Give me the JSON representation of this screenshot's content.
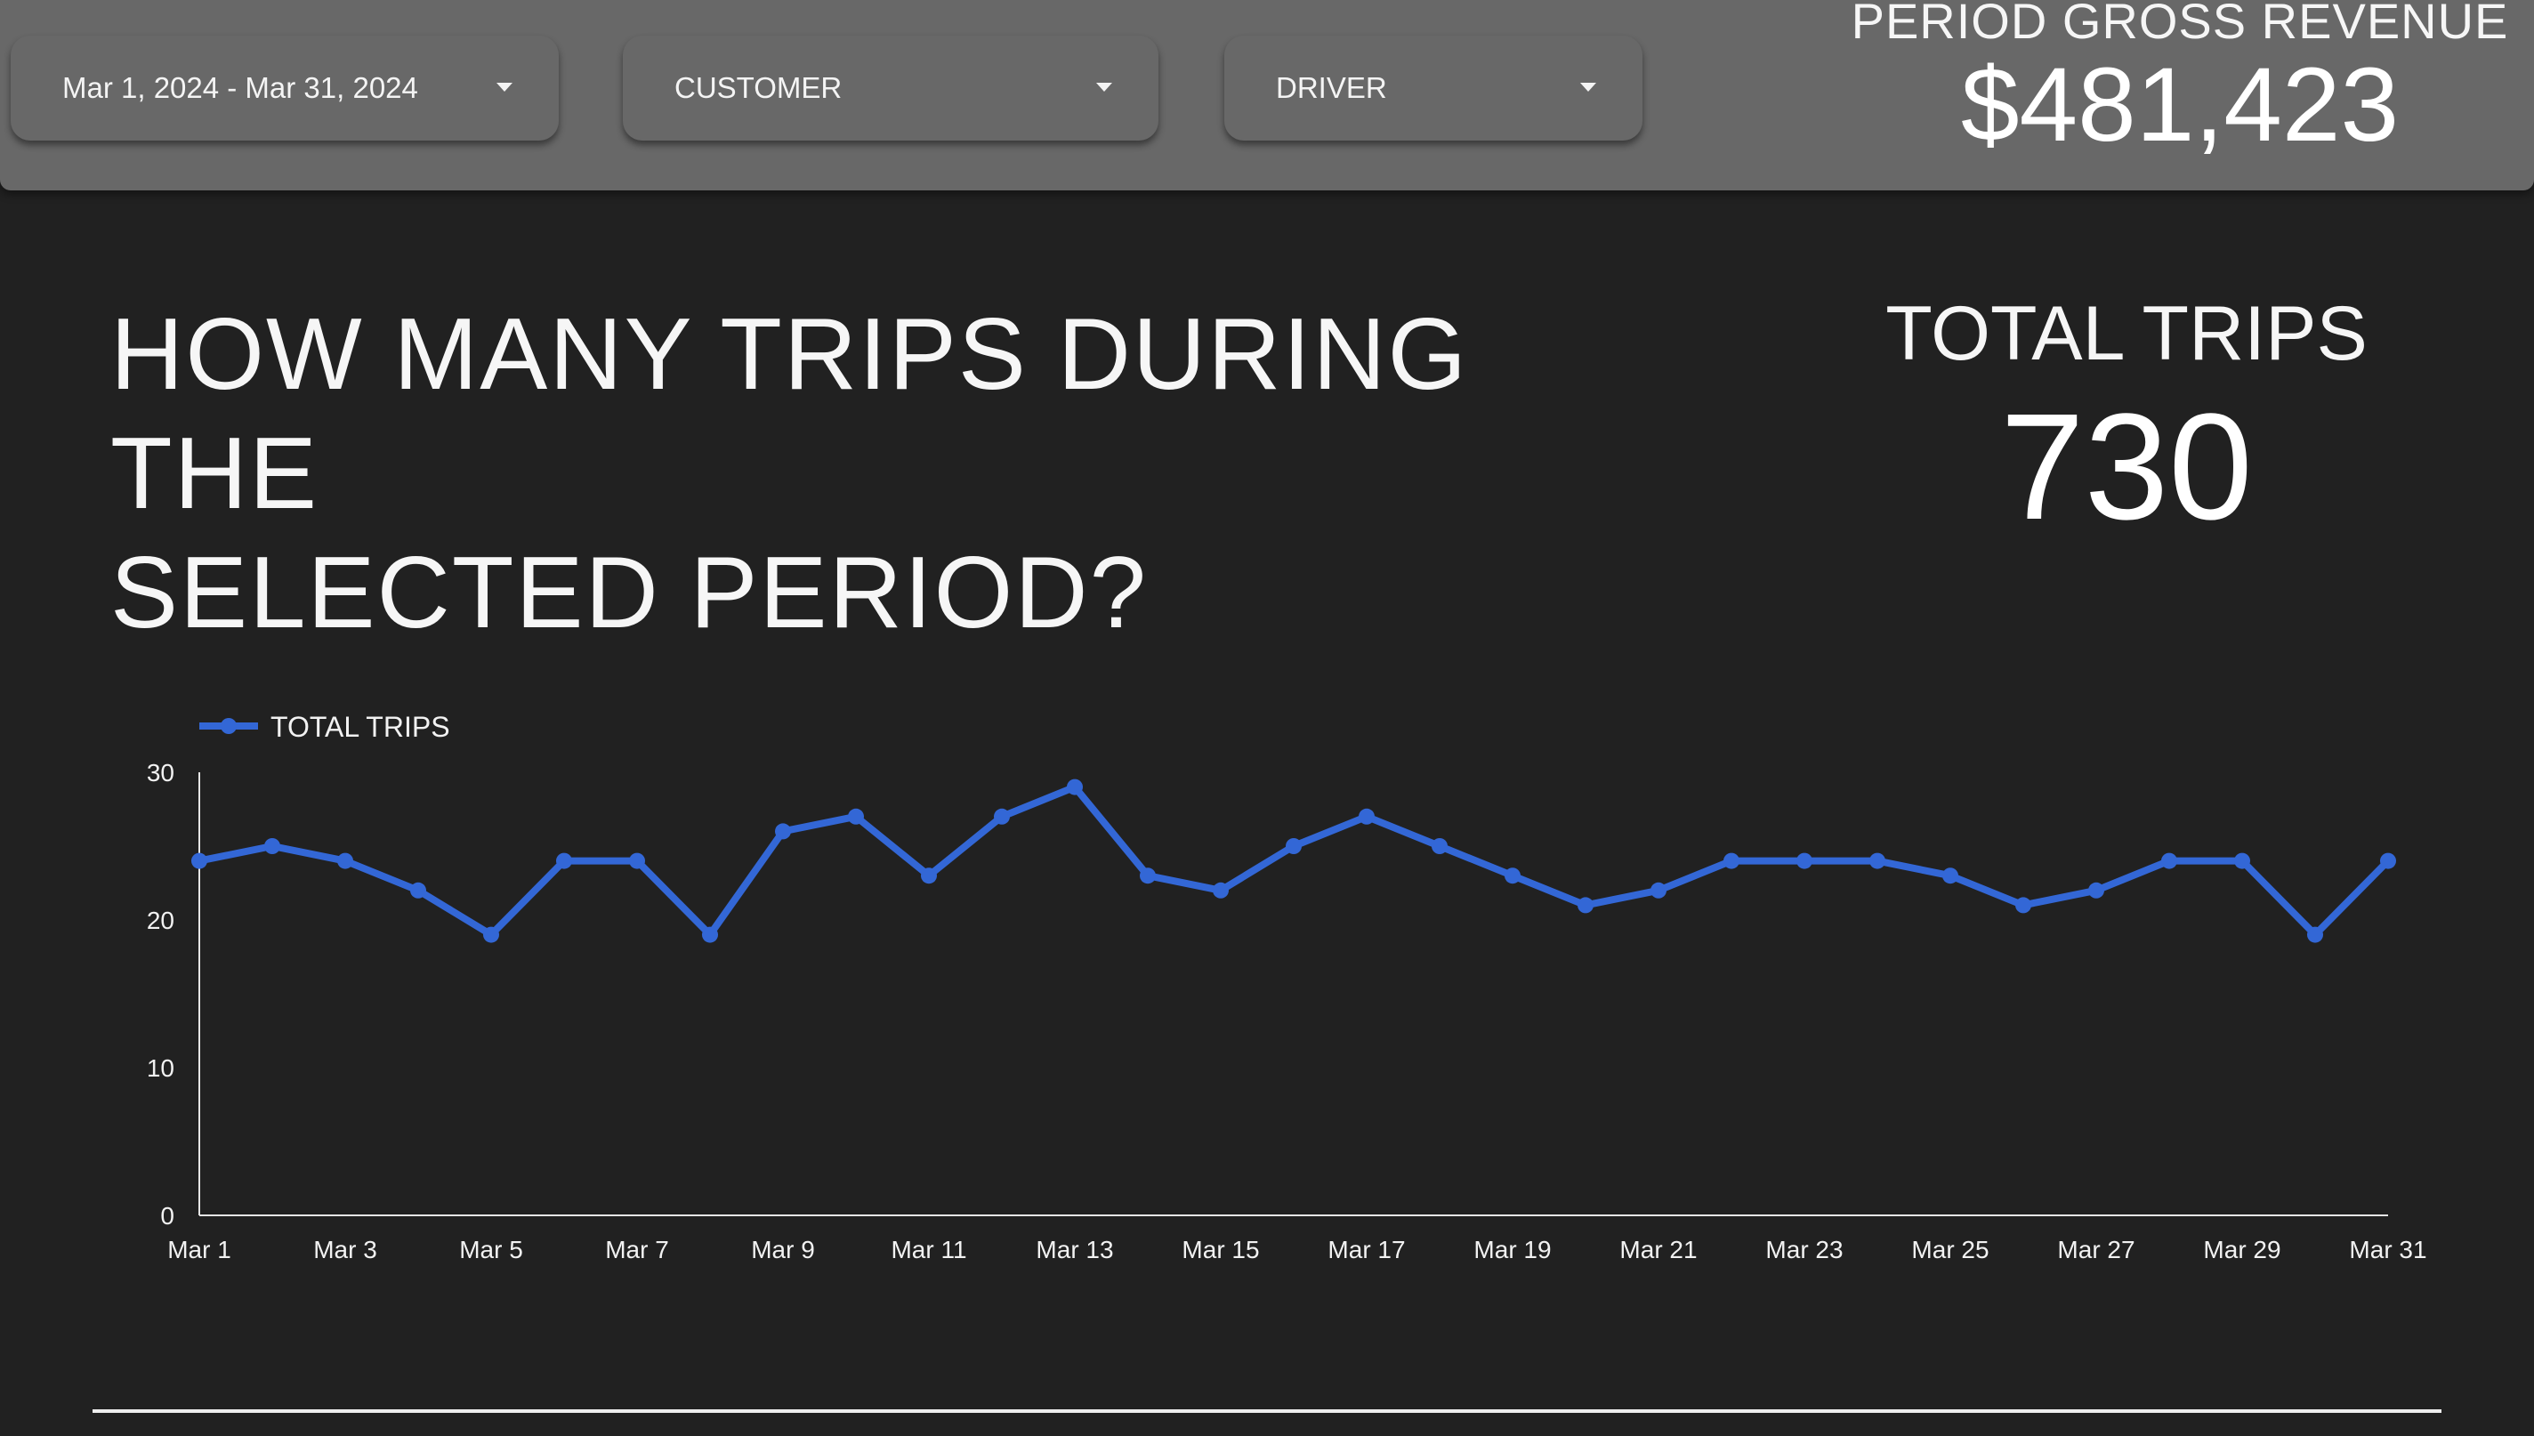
{
  "filters": {
    "date_range": "Mar 1, 2024 - Mar 31, 2024",
    "customer": "CUSTOMER",
    "driver": "DRIVER"
  },
  "revenue": {
    "label": "PERIOD GROSS REVENUE",
    "value": "$481,423"
  },
  "question": {
    "line1": "HOW MANY TRIPS DURING THE",
    "line2": "SELECTED PERIOD?"
  },
  "kpi": {
    "label": "TOTAL TRIPS",
    "value": "730"
  },
  "colors": {
    "background": "#212121",
    "topbar": "#686868",
    "series": "#3367d6"
  },
  "icons": {
    "filter_caret": "caret-down-icon"
  },
  "chart_data": {
    "type": "line",
    "legend": "top-left",
    "grid": false,
    "x": [
      "Mar 1",
      "Mar 2",
      "Mar 3",
      "Mar 4",
      "Mar 5",
      "Mar 6",
      "Mar 7",
      "Mar 8",
      "Mar 9",
      "Mar 10",
      "Mar 11",
      "Mar 12",
      "Mar 13",
      "Mar 14",
      "Mar 15",
      "Mar 16",
      "Mar 17",
      "Mar 18",
      "Mar 19",
      "Mar 20",
      "Mar 21",
      "Mar 22",
      "Mar 23",
      "Mar 24",
      "Mar 25",
      "Mar 26",
      "Mar 27",
      "Mar 28",
      "Mar 29",
      "Mar 30",
      "Mar 31"
    ],
    "x_tick_labels": [
      "Mar 1",
      "Mar 3",
      "Mar 5",
      "Mar 7",
      "Mar 9",
      "Mar 11",
      "Mar 13",
      "Mar 15",
      "Mar 17",
      "Mar 19",
      "Mar 21",
      "Mar 23",
      "Mar 25",
      "Mar 27",
      "Mar 29",
      "Mar 31"
    ],
    "series": [
      {
        "name": "TOTAL TRIPS",
        "values": [
          24,
          25,
          24,
          22,
          19,
          24,
          24,
          19,
          26,
          27,
          23,
          27,
          29,
          23,
          22,
          25,
          27,
          25,
          23,
          21,
          22,
          24,
          24,
          24,
          23,
          21,
          22,
          24,
          24,
          19,
          24
        ]
      }
    ],
    "ylim": [
      0,
      30
    ],
    "y_ticks": [
      0,
      10,
      20,
      30
    ]
  }
}
